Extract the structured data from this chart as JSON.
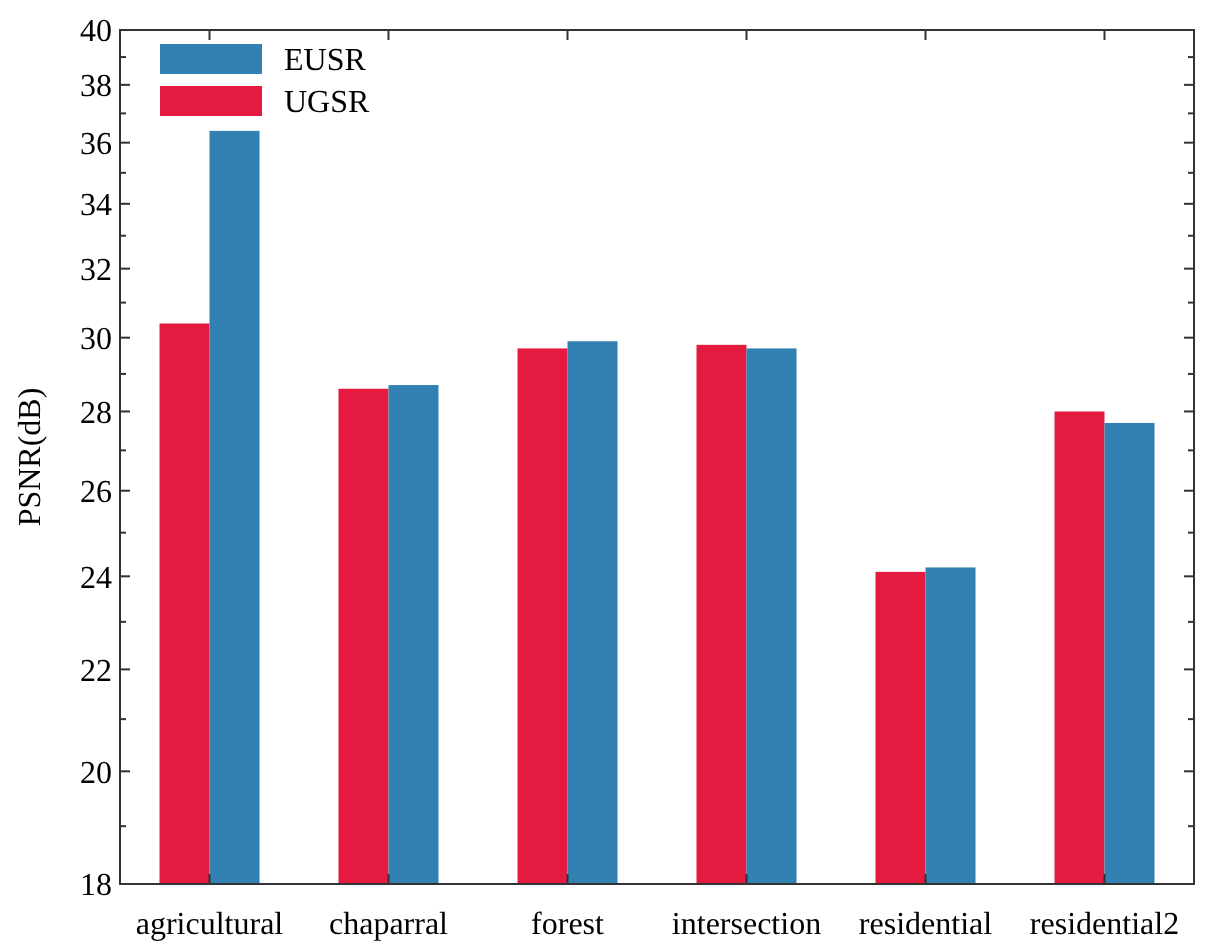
{
  "chart_data": {
    "type": "bar",
    "ylabel": "PSNR(dB)",
    "log": "y",
    "categories": [
      "agricultural",
      "chaparral",
      "forest",
      "intersection",
      "residential",
      "residential2"
    ],
    "series": [
      {
        "name": "UGSR",
        "color": "#e51a41",
        "values": [
          30.4,
          28.6,
          29.7,
          29.8,
          24.1,
          28.0
        ]
      },
      {
        "name": "EUSR",
        "color": "#3380b3",
        "values": [
          36.4,
          28.7,
          29.9,
          29.7,
          24.2,
          27.7
        ]
      }
    ],
    "ylim": [
      18,
      40
    ],
    "yticks": [
      18,
      {
        "value": 19,
        "label": null
      },
      20,
      {
        "value": 21,
        "label": null
      },
      22,
      {
        "value": 23,
        "label": null
      },
      24,
      {
        "value": 25,
        "label": null
      },
      26,
      {
        "value": 27,
        "label": null
      },
      28,
      {
        "value": 29,
        "label": null
      },
      30,
      {
        "value": 31,
        "label": null
      },
      32,
      {
        "value": 33,
        "label": null
      },
      34,
      {
        "value": 35,
        "label": null
      },
      36,
      {
        "value": 37,
        "label": null
      },
      38,
      {
        "value": 39,
        "label": null
      },
      40
    ],
    "legend": "top left",
    "grid": false
  }
}
